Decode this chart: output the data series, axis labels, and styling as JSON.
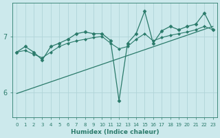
{
  "xlabel": "Humidex (Indice chaleur)",
  "bg_color": "#cce9ec",
  "grid_color": "#b0d4d8",
  "line_color": "#2a7a6a",
  "xlim": [
    -0.5,
    23.5
  ],
  "ylim": [
    5.55,
    7.6
  ],
  "yticks": [
    6,
    7
  ],
  "xticks": [
    0,
    1,
    2,
    3,
    4,
    5,
    6,
    7,
    8,
    9,
    10,
    11,
    12,
    13,
    14,
    15,
    16,
    17,
    18,
    19,
    20,
    21,
    22,
    23
  ],
  "series": [
    {
      "x": [
        0,
        1,
        2,
        3,
        4,
        5,
        6,
        7,
        8,
        9,
        10,
        11,
        12,
        13,
        14,
        15,
        16,
        17,
        18,
        19,
        20,
        21,
        22,
        23
      ],
      "y": [
        6.72,
        6.82,
        6.72,
        6.58,
        6.82,
        6.88,
        6.95,
        7.05,
        7.08,
        7.05,
        7.05,
        6.93,
        5.85,
        6.88,
        7.05,
        7.45,
        6.88,
        7.1,
        7.18,
        7.12,
        7.18,
        7.22,
        7.42,
        7.12
      ],
      "marker": "D",
      "markersize": 2.5,
      "linewidth": 0.9
    },
    {
      "x": [
        0,
        23
      ],
      "y": [
        5.98,
        7.18
      ],
      "marker": null,
      "markersize": 0,
      "linewidth": 0.9
    },
    {
      "x": [
        0,
        1,
        2,
        3,
        4,
        5,
        6,
        7,
        8,
        9,
        10,
        11,
        12,
        13,
        14,
        15,
        16,
        17,
        18,
        19,
        20,
        21,
        22,
        23
      ],
      "y": [
        6.72,
        6.75,
        6.68,
        6.62,
        6.72,
        6.82,
        6.88,
        6.92,
        6.95,
        6.98,
        7.0,
        6.88,
        6.78,
        6.82,
        6.95,
        7.05,
        6.92,
        6.98,
        7.02,
        7.05,
        7.08,
        7.12,
        7.18,
        7.12
      ],
      "marker": "D",
      "markersize": 2.0,
      "linewidth": 0.8
    }
  ]
}
